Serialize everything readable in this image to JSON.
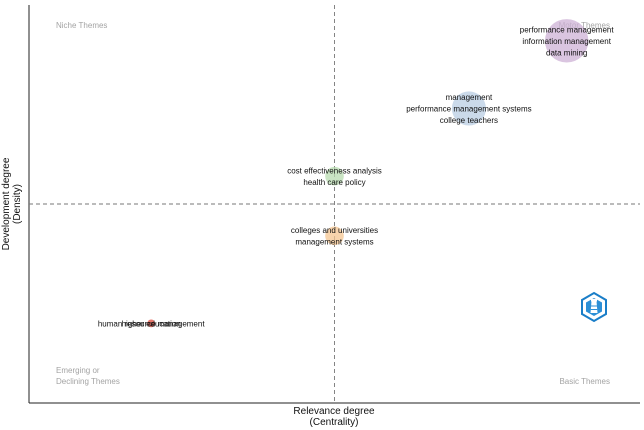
{
  "chart_data": {
    "type": "scatter",
    "xlabel": "Relevance degree",
    "xlabel_sub": "(Centrality)",
    "ylabel": "Development degree",
    "ylabel_sub": "(Density)",
    "xlim": [
      0,
      1
    ],
    "ylim": [
      0,
      1
    ],
    "center_x": 0.5,
    "center_y": 0.5,
    "quadrants": {
      "top_left": [
        "Niche Themes"
      ],
      "top_right": [
        "Motor Themes"
      ],
      "bottom_left": [
        "Emerging or",
        "Declining Themes"
      ],
      "bottom_right": [
        "Basic Themes"
      ]
    },
    "clusters": [
      {
        "x": 0.88,
        "y": 0.91,
        "size": 14,
        "color": "#cdb1d6",
        "labels": [
          "performance management",
          "information management",
          "data mining"
        ]
      },
      {
        "x": 0.72,
        "y": 0.74,
        "size": 11,
        "color": "#b9cde3",
        "labels": [
          "management",
          "performance management systems",
          "college teachers"
        ]
      },
      {
        "x": 0.5,
        "y": 0.57,
        "size": 6,
        "color": "#b8dcb0",
        "labels": [
          "cost effectiveness analysis",
          "health care policy"
        ]
      },
      {
        "x": 0.5,
        "y": 0.42,
        "size": 6,
        "color": "#f5c590",
        "labels": [
          "colleges and universities",
          "management systems"
        ]
      },
      {
        "x": 0.2,
        "y": 0.2,
        "size": 2.5,
        "color": "#e04a3a",
        "labels": [
          "higher education",
          "human resource management"
        ]
      }
    ]
  },
  "logo": {
    "icon": "lighthouse-logo-icon",
    "color": "#1a7ec8"
  }
}
